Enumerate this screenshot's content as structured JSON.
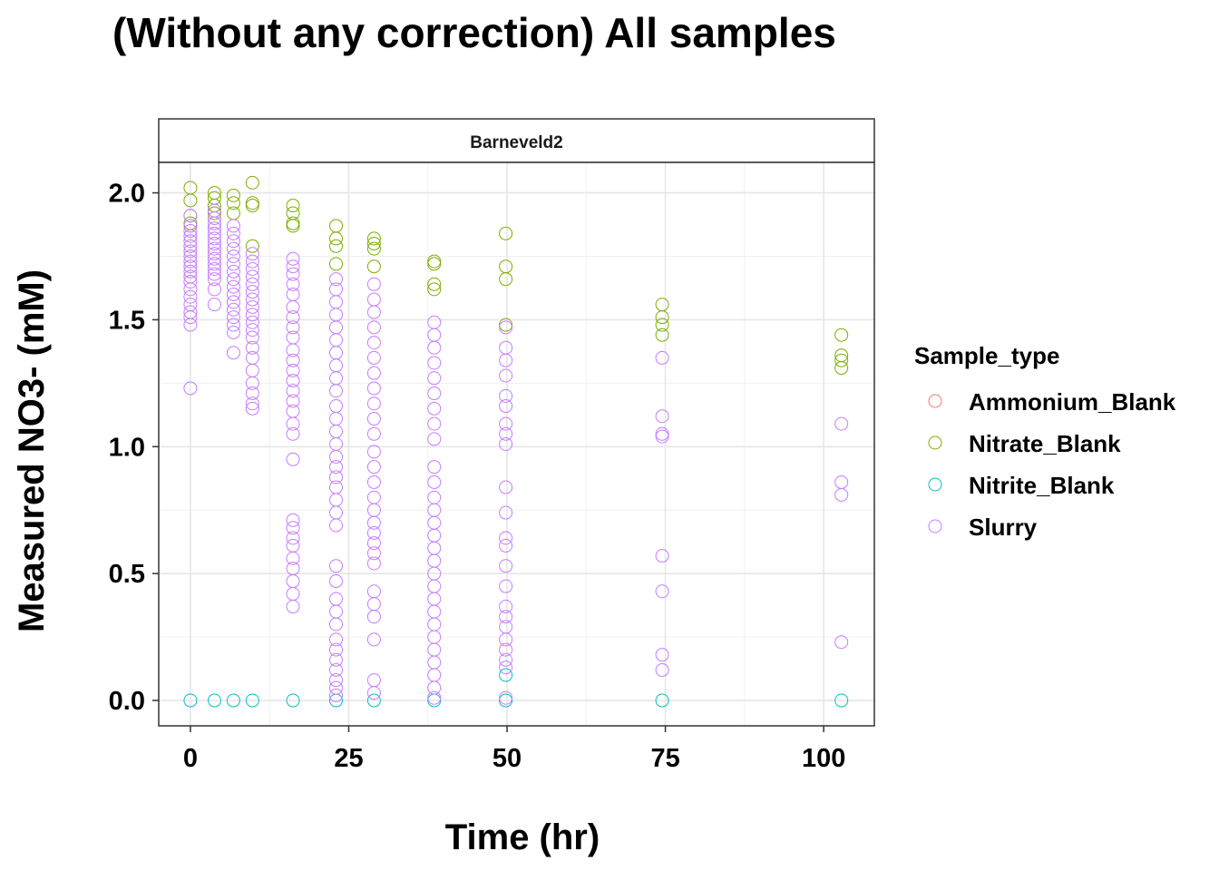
{
  "chart_data": {
    "type": "scatter",
    "title": "(Without any correction) All samples",
    "facet": "Barneveld2",
    "xlabel": "Time (hr)",
    "ylabel": "Measured NO3- (mM)",
    "xlim": [
      -5,
      108
    ],
    "ylim": [
      -0.1,
      2.12
    ],
    "x_ticks": [
      0,
      25,
      50,
      75,
      100
    ],
    "y_ticks": [
      0.0,
      0.5,
      1.0,
      1.5,
      2.0
    ],
    "x_tick_labels": [
      "0",
      "25",
      "50",
      "75",
      "100"
    ],
    "y_tick_labels": [
      "0.0",
      "0.5",
      "1.0",
      "1.5",
      "2.0"
    ],
    "grid": true,
    "legend": {
      "title": "Sample_type",
      "placement": "right",
      "entries": [
        {
          "label": "Ammonium_Blank",
          "color": "#F8766D"
        },
        {
          "label": "Nitrate_Blank",
          "color": "#7CAE00"
        },
        {
          "label": "Nitrite_Blank",
          "color": "#00BFC4"
        },
        {
          "label": "Slurry",
          "color": "#C77CFF"
        }
      ]
    },
    "series": [
      {
        "name": "Ammonium_Blank",
        "color": "#F8766D",
        "points": []
      },
      {
        "name": "Nitrate_Blank",
        "color": "#7CAE00",
        "points": [
          [
            0,
            2.02
          ],
          [
            0,
            1.97
          ],
          [
            0,
            1.91
          ],
          [
            0,
            1.88
          ],
          [
            3.8,
            2.0
          ],
          [
            3.8,
            1.98
          ],
          [
            3.8,
            1.95
          ],
          [
            3.8,
            1.92
          ],
          [
            6.8,
            1.99
          ],
          [
            6.8,
            1.96
          ],
          [
            6.8,
            1.92
          ],
          [
            9.8,
            2.04
          ],
          [
            9.8,
            1.96
          ],
          [
            9.8,
            1.95
          ],
          [
            9.8,
            1.79
          ],
          [
            16.2,
            1.95
          ],
          [
            16.2,
            1.92
          ],
          [
            16.2,
            1.88
          ],
          [
            16.2,
            1.87
          ],
          [
            23,
            1.87
          ],
          [
            23,
            1.82
          ],
          [
            23,
            1.79
          ],
          [
            23,
            1.72
          ],
          [
            29,
            1.82
          ],
          [
            29,
            1.8
          ],
          [
            29,
            1.78
          ],
          [
            29,
            1.71
          ],
          [
            38.5,
            1.73
          ],
          [
            38.5,
            1.72
          ],
          [
            38.5,
            1.64
          ],
          [
            38.5,
            1.62
          ],
          [
            49.8,
            1.84
          ],
          [
            49.8,
            1.71
          ],
          [
            49.8,
            1.66
          ],
          [
            49.8,
            1.48
          ],
          [
            74.5,
            1.56
          ],
          [
            74.5,
            1.51
          ],
          [
            74.5,
            1.48
          ],
          [
            74.5,
            1.44
          ],
          [
            102.8,
            1.44
          ],
          [
            102.8,
            1.36
          ],
          [
            102.8,
            1.34
          ],
          [
            102.8,
            1.31
          ]
        ]
      },
      {
        "name": "Nitrite_Blank",
        "color": "#00BFC4",
        "points": [
          [
            0,
            0.0
          ],
          [
            3.8,
            0.0
          ],
          [
            6.8,
            0.0
          ],
          [
            9.8,
            0.0
          ],
          [
            16.2,
            0.0
          ],
          [
            23,
            0.0
          ],
          [
            29,
            0.0
          ],
          [
            38.5,
            0.0
          ],
          [
            49.8,
            0.1
          ],
          [
            49.8,
            0.0
          ],
          [
            74.5,
            0.0
          ],
          [
            102.8,
            0.0
          ]
        ]
      },
      {
        "name": "Slurry",
        "color": "#C77CFF",
        "points": [
          [
            0,
            1.91
          ],
          [
            0,
            1.87
          ],
          [
            0,
            1.85
          ],
          [
            0,
            1.83
          ],
          [
            0,
            1.81
          ],
          [
            0,
            1.79
          ],
          [
            0,
            1.77
          ],
          [
            0,
            1.75
          ],
          [
            0,
            1.73
          ],
          [
            0,
            1.71
          ],
          [
            0,
            1.69
          ],
          [
            0,
            1.67
          ],
          [
            0,
            1.65
          ],
          [
            0,
            1.62
          ],
          [
            0,
            1.59
          ],
          [
            0,
            1.56
          ],
          [
            0,
            1.53
          ],
          [
            0,
            1.51
          ],
          [
            0,
            1.48
          ],
          [
            0,
            1.23
          ],
          [
            3.8,
            1.93
          ],
          [
            3.8,
            1.9
          ],
          [
            3.8,
            1.88
          ],
          [
            3.8,
            1.86
          ],
          [
            3.8,
            1.84
          ],
          [
            3.8,
            1.82
          ],
          [
            3.8,
            1.8
          ],
          [
            3.8,
            1.78
          ],
          [
            3.8,
            1.76
          ],
          [
            3.8,
            1.74
          ],
          [
            3.8,
            1.72
          ],
          [
            3.8,
            1.7
          ],
          [
            3.8,
            1.68
          ],
          [
            3.8,
            1.66
          ],
          [
            3.8,
            1.62
          ],
          [
            3.8,
            1.56
          ],
          [
            6.8,
            1.87
          ],
          [
            6.8,
            1.84
          ],
          [
            6.8,
            1.81
          ],
          [
            6.8,
            1.78
          ],
          [
            6.8,
            1.75
          ],
          [
            6.8,
            1.72
          ],
          [
            6.8,
            1.69
          ],
          [
            6.8,
            1.66
          ],
          [
            6.8,
            1.63
          ],
          [
            6.8,
            1.6
          ],
          [
            6.8,
            1.57
          ],
          [
            6.8,
            1.54
          ],
          [
            6.8,
            1.51
          ],
          [
            6.8,
            1.48
          ],
          [
            6.8,
            1.45
          ],
          [
            6.8,
            1.37
          ],
          [
            9.8,
            1.76
          ],
          [
            9.8,
            1.73
          ],
          [
            9.8,
            1.7
          ],
          [
            9.8,
            1.67
          ],
          [
            9.8,
            1.64
          ],
          [
            9.8,
            1.61
          ],
          [
            9.8,
            1.58
          ],
          [
            9.8,
            1.55
          ],
          [
            9.8,
            1.52
          ],
          [
            9.8,
            1.49
          ],
          [
            9.8,
            1.46
          ],
          [
            9.8,
            1.43
          ],
          [
            9.8,
            1.39
          ],
          [
            9.8,
            1.35
          ],
          [
            9.8,
            1.3
          ],
          [
            9.8,
            1.25
          ],
          [
            9.8,
            1.21
          ],
          [
            9.8,
            1.17
          ],
          [
            9.8,
            1.15
          ],
          [
            16.2,
            1.74
          ],
          [
            16.2,
            1.71
          ],
          [
            16.2,
            1.68
          ],
          [
            16.2,
            1.64
          ],
          [
            16.2,
            1.6
          ],
          [
            16.2,
            1.55
          ],
          [
            16.2,
            1.51
          ],
          [
            16.2,
            1.47
          ],
          [
            16.2,
            1.43
          ],
          [
            16.2,
            1.38
          ],
          [
            16.2,
            1.34
          ],
          [
            16.2,
            1.3
          ],
          [
            16.2,
            1.26
          ],
          [
            16.2,
            1.22
          ],
          [
            16.2,
            1.18
          ],
          [
            16.2,
            1.14
          ],
          [
            16.2,
            1.09
          ],
          [
            16.2,
            1.05
          ],
          [
            16.2,
            0.95
          ],
          [
            16.2,
            0.71
          ],
          [
            16.2,
            0.68
          ],
          [
            16.2,
            0.64
          ],
          [
            16.2,
            0.61
          ],
          [
            16.2,
            0.56
          ],
          [
            16.2,
            0.52
          ],
          [
            16.2,
            0.47
          ],
          [
            16.2,
            0.42
          ],
          [
            16.2,
            0.37
          ],
          [
            23,
            1.66
          ],
          [
            23,
            1.62
          ],
          [
            23,
            1.57
          ],
          [
            23,
            1.52
          ],
          [
            23,
            1.47
          ],
          [
            23,
            1.42
          ],
          [
            23,
            1.37
          ],
          [
            23,
            1.32
          ],
          [
            23,
            1.27
          ],
          [
            23,
            1.22
          ],
          [
            23,
            1.16
          ],
          [
            23,
            1.11
          ],
          [
            23,
            1.06
          ],
          [
            23,
            1.01
          ],
          [
            23,
            0.96
          ],
          [
            23,
            0.92
          ],
          [
            23,
            0.88
          ],
          [
            23,
            0.84
          ],
          [
            23,
            0.79
          ],
          [
            23,
            0.74
          ],
          [
            23,
            0.69
          ],
          [
            23,
            0.53
          ],
          [
            23,
            0.47
          ],
          [
            23,
            0.4
          ],
          [
            23,
            0.35
          ],
          [
            23,
            0.3
          ],
          [
            23,
            0.24
          ],
          [
            23,
            0.2
          ],
          [
            23,
            0.16
          ],
          [
            23,
            0.12
          ],
          [
            23,
            0.08
          ],
          [
            23,
            0.05
          ],
          [
            23,
            0.02
          ],
          [
            29,
            1.64
          ],
          [
            29,
            1.58
          ],
          [
            29,
            1.53
          ],
          [
            29,
            1.47
          ],
          [
            29,
            1.41
          ],
          [
            29,
            1.35
          ],
          [
            29,
            1.29
          ],
          [
            29,
            1.23
          ],
          [
            29,
            1.17
          ],
          [
            29,
            1.11
          ],
          [
            29,
            1.05
          ],
          [
            29,
            0.98
          ],
          [
            29,
            0.92
          ],
          [
            29,
            0.86
          ],
          [
            29,
            0.8
          ],
          [
            29,
            0.75
          ],
          [
            29,
            0.7
          ],
          [
            29,
            0.66
          ],
          [
            29,
            0.62
          ],
          [
            29,
            0.58
          ],
          [
            29,
            0.54
          ],
          [
            29,
            0.43
          ],
          [
            29,
            0.38
          ],
          [
            29,
            0.33
          ],
          [
            29,
            0.24
          ],
          [
            29,
            0.08
          ],
          [
            29,
            0.03
          ],
          [
            38.5,
            1.49
          ],
          [
            38.5,
            1.44
          ],
          [
            38.5,
            1.39
          ],
          [
            38.5,
            1.33
          ],
          [
            38.5,
            1.27
          ],
          [
            38.5,
            1.21
          ],
          [
            38.5,
            1.15
          ],
          [
            38.5,
            1.09
          ],
          [
            38.5,
            1.03
          ],
          [
            38.5,
            0.92
          ],
          [
            38.5,
            0.86
          ],
          [
            38.5,
            0.8
          ],
          [
            38.5,
            0.75
          ],
          [
            38.5,
            0.7
          ],
          [
            38.5,
            0.65
          ],
          [
            38.5,
            0.6
          ],
          [
            38.5,
            0.55
          ],
          [
            38.5,
            0.5
          ],
          [
            38.5,
            0.45
          ],
          [
            38.5,
            0.4
          ],
          [
            38.5,
            0.35
          ],
          [
            38.5,
            0.3
          ],
          [
            38.5,
            0.25
          ],
          [
            38.5,
            0.2
          ],
          [
            38.5,
            0.15
          ],
          [
            38.5,
            0.1
          ],
          [
            38.5,
            0.05
          ],
          [
            38.5,
            0.01
          ],
          [
            49.8,
            1.47
          ],
          [
            49.8,
            1.39
          ],
          [
            49.8,
            1.34
          ],
          [
            49.8,
            1.28
          ],
          [
            49.8,
            1.2
          ],
          [
            49.8,
            1.16
          ],
          [
            49.8,
            1.09
          ],
          [
            49.8,
            1.05
          ],
          [
            49.8,
            1.01
          ],
          [
            49.8,
            0.84
          ],
          [
            49.8,
            0.74
          ],
          [
            49.8,
            0.64
          ],
          [
            49.8,
            0.61
          ],
          [
            49.8,
            0.53
          ],
          [
            49.8,
            0.45
          ],
          [
            49.8,
            0.37
          ],
          [
            49.8,
            0.33
          ],
          [
            49.8,
            0.29
          ],
          [
            49.8,
            0.24
          ],
          [
            49.8,
            0.2
          ],
          [
            49.8,
            0.16
          ],
          [
            49.8,
            0.13
          ],
          [
            49.8,
            0.01
          ],
          [
            74.5,
            1.35
          ],
          [
            74.5,
            1.12
          ],
          [
            74.5,
            1.05
          ],
          [
            74.5,
            1.04
          ],
          [
            74.5,
            0.57
          ],
          [
            74.5,
            0.43
          ],
          [
            74.5,
            0.18
          ],
          [
            74.5,
            0.12
          ],
          [
            102.8,
            1.09
          ],
          [
            102.8,
            0.86
          ],
          [
            102.8,
            0.81
          ],
          [
            102.8,
            0.23
          ]
        ]
      }
    ]
  }
}
